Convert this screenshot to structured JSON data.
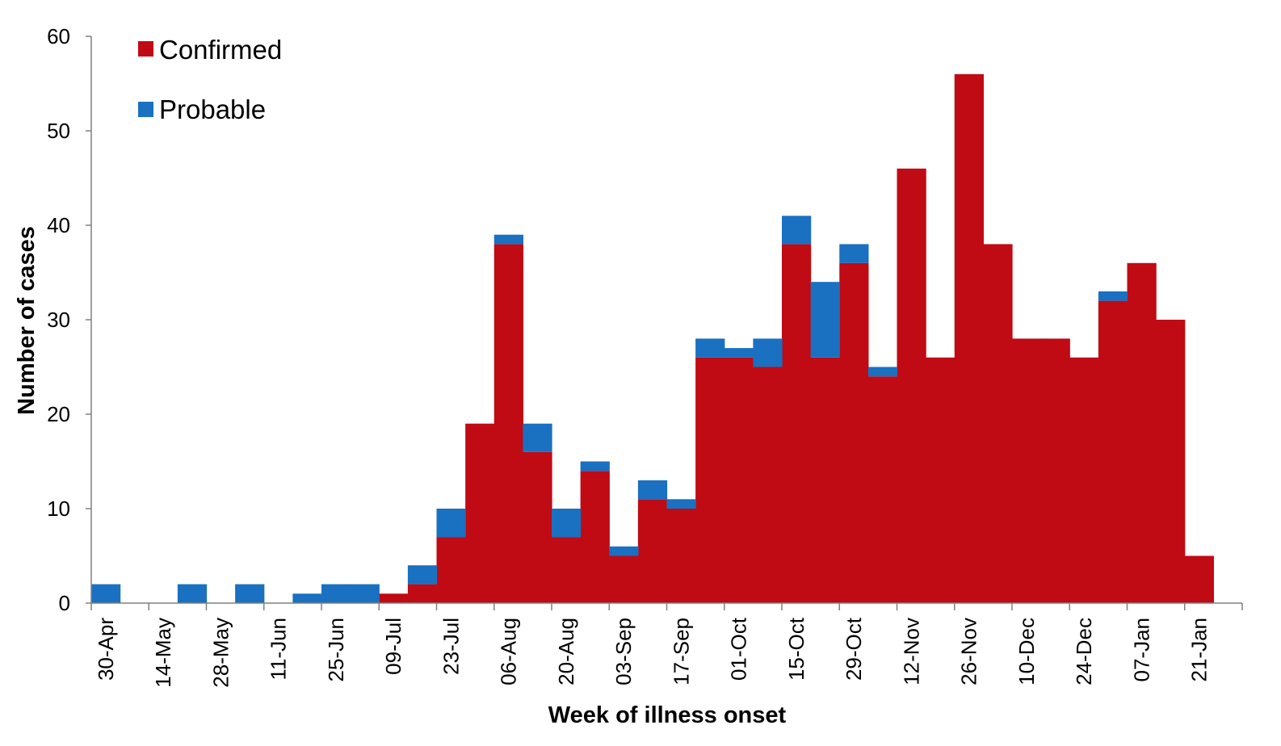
{
  "colors": {
    "confirmed": "#c00a14",
    "probable": "#1a70c1",
    "axis": "#808080"
  },
  "chart_data": {
    "type": "bar",
    "stacked": true,
    "title": "",
    "xlabel": "Week of illness onset",
    "ylabel": "Number of cases",
    "ylim": [
      0,
      60
    ],
    "yticks": [
      0,
      10,
      20,
      30,
      40,
      50,
      60
    ],
    "xtick_labels": [
      "30-Apr",
      "14-May",
      "28-May",
      "11-Jun",
      "25-Jun",
      "09-Jul",
      "23-Jul",
      "06-Aug",
      "20-Aug",
      "03-Sep",
      "17-Sep",
      "01-Oct",
      "15-Oct",
      "29-Oct",
      "12-Nov",
      "26-Nov",
      "10-Dec",
      "24-Dec",
      "07-Jan",
      "21-Jan"
    ],
    "categories": [
      "30-Apr",
      "07-May",
      "14-May",
      "21-May",
      "28-May",
      "04-Jun",
      "11-Jun",
      "18-Jun",
      "25-Jun",
      "02-Jul",
      "09-Jul",
      "16-Jul",
      "23-Jul",
      "30-Jul",
      "06-Aug",
      "13-Aug",
      "20-Aug",
      "27-Aug",
      "03-Sep",
      "10-Sep",
      "17-Sep",
      "24-Sep",
      "01-Oct",
      "08-Oct",
      "15-Oct",
      "22-Oct",
      "29-Oct",
      "05-Nov",
      "12-Nov",
      "19-Nov",
      "26-Nov",
      "03-Dec",
      "10-Dec",
      "17-Dec",
      "24-Dec",
      "31-Dec",
      "07-Jan",
      "14-Jan",
      "21-Jan",
      "28-Jan"
    ],
    "legend_position": "top-left",
    "grid": false,
    "series": [
      {
        "name": "Confirmed",
        "color": "#c00a14",
        "values": [
          0,
          0,
          0,
          0,
          0,
          0,
          0,
          0,
          0,
          0,
          1,
          2,
          7,
          19,
          38,
          16,
          7,
          14,
          5,
          11,
          10,
          26,
          26,
          25,
          38,
          26,
          36,
          24,
          46,
          26,
          56,
          38,
          28,
          28,
          26,
          32,
          36,
          30,
          5,
          0
        ]
      },
      {
        "name": "Probable",
        "color": "#1a70c1",
        "values": [
          2,
          0,
          0,
          2,
          0,
          2,
          0,
          1,
          2,
          2,
          0,
          2,
          3,
          0,
          1,
          3,
          3,
          1,
          1,
          2,
          1,
          2,
          1,
          3,
          3,
          8,
          2,
          1,
          0,
          0,
          0,
          0,
          0,
          0,
          0,
          1,
          0,
          0,
          0,
          0
        ]
      }
    ]
  }
}
